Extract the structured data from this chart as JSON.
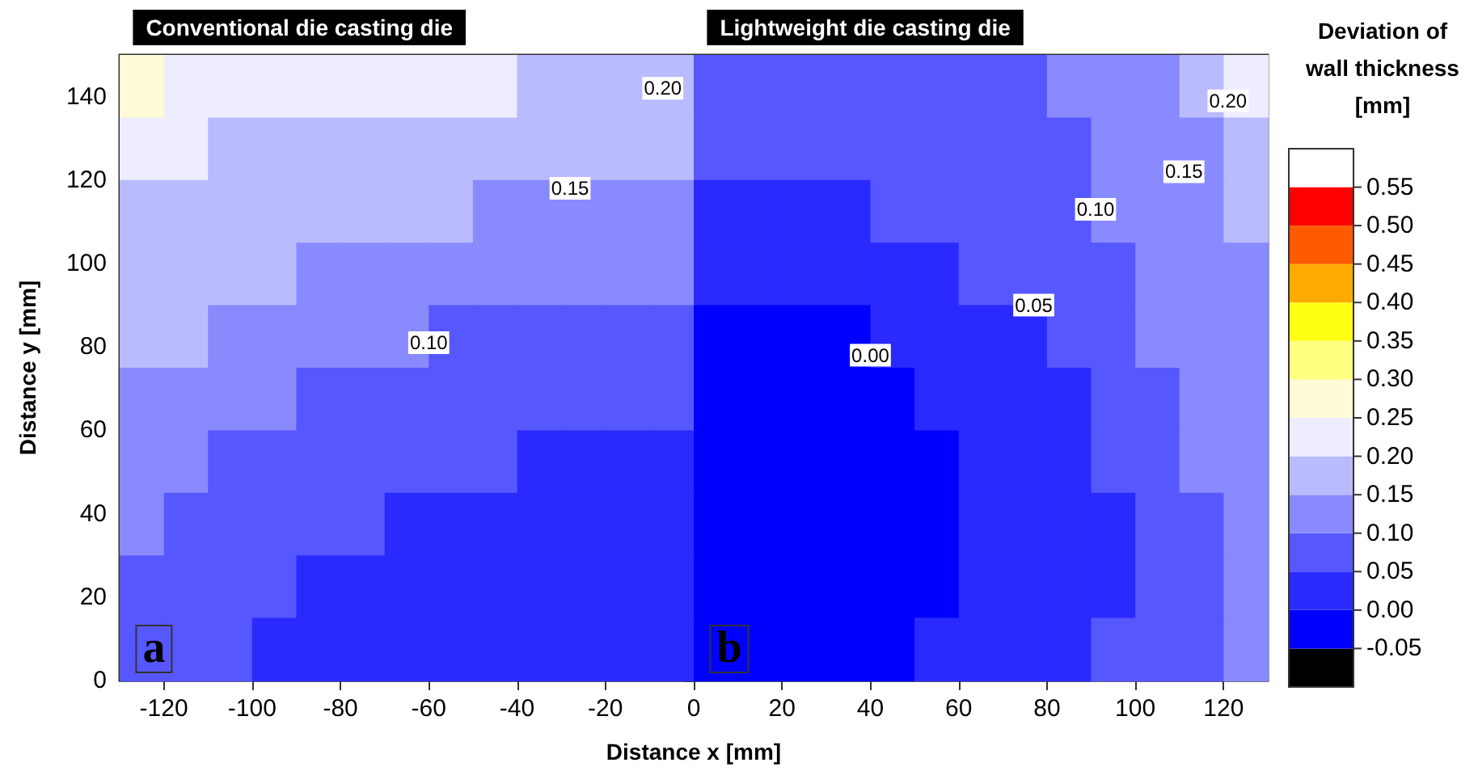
{
  "chart_data": {
    "type": "heatmap",
    "xlabel": "Distance x [mm]",
    "ylabel": "Distance y [mm]",
    "clabel": "Deviation of wall thickness [mm]",
    "x": [
      -125,
      -115,
      -105,
      -95,
      -85,
      -75,
      -65,
      -55,
      -45,
      -35,
      -25,
      -15,
      -5,
      5,
      15,
      25,
      35,
      45,
      55,
      65,
      75,
      85,
      95,
      105,
      115,
      125
    ],
    "y": [
      142.5,
      127.5,
      112.5,
      97.5,
      82.5,
      67.5,
      52.5,
      37.5,
      22.5,
      7.5
    ],
    "cells": [
      [
        0.275,
        0.225,
        0.225,
        0.225,
        0.225,
        0.225,
        0.225,
        0.225,
        0.225,
        0.175,
        0.175,
        0.175,
        0.175,
        0.075,
        0.075,
        0.075,
        0.075,
        0.075,
        0.075,
        0.075,
        0.075,
        0.125,
        0.125,
        0.125,
        0.175,
        0.225
      ],
      [
        0.225,
        0.225,
        0.175,
        0.175,
        0.175,
        0.175,
        0.175,
        0.175,
        0.175,
        0.175,
        0.175,
        0.175,
        0.175,
        0.075,
        0.075,
        0.075,
        0.075,
        0.075,
        0.075,
        0.075,
        0.075,
        0.075,
        0.125,
        0.125,
        0.125,
        0.175
      ],
      [
        0.175,
        0.175,
        0.175,
        0.175,
        0.175,
        0.175,
        0.175,
        0.175,
        0.125,
        0.125,
        0.125,
        0.125,
        0.125,
        0.025,
        0.025,
        0.025,
        0.025,
        0.075,
        0.075,
        0.075,
        0.075,
        0.075,
        0.125,
        0.125,
        0.125,
        0.175
      ],
      [
        0.175,
        0.175,
        0.175,
        0.175,
        0.125,
        0.125,
        0.125,
        0.125,
        0.125,
        0.125,
        0.125,
        0.125,
        0.125,
        0.025,
        0.025,
        0.025,
        0.025,
        0.025,
        0.025,
        0.075,
        0.075,
        0.075,
        0.075,
        0.125,
        0.125,
        0.125
      ],
      [
        0.175,
        0.175,
        0.125,
        0.125,
        0.125,
        0.125,
        0.125,
        0.075,
        0.075,
        0.075,
        0.075,
        0.075,
        0.075,
        -0.025,
        -0.025,
        -0.025,
        -0.025,
        0.025,
        0.025,
        0.025,
        0.025,
        0.075,
        0.075,
        0.125,
        0.125,
        0.125
      ],
      [
        0.125,
        0.125,
        0.125,
        0.125,
        0.075,
        0.075,
        0.075,
        0.075,
        0.075,
        0.075,
        0.075,
        0.075,
        0.075,
        -0.025,
        -0.025,
        -0.025,
        -0.025,
        -0.025,
        0.025,
        0.025,
        0.025,
        0.025,
        0.075,
        0.075,
        0.125,
        0.125
      ],
      [
        0.125,
        0.125,
        0.075,
        0.075,
        0.075,
        0.075,
        0.075,
        0.075,
        0.075,
        0.025,
        0.025,
        0.025,
        0.025,
        -0.025,
        -0.025,
        -0.025,
        -0.025,
        -0.025,
        -0.025,
        0.025,
        0.025,
        0.025,
        0.075,
        0.075,
        0.125,
        0.125
      ],
      [
        0.125,
        0.075,
        0.075,
        0.075,
        0.075,
        0.075,
        0.025,
        0.025,
        0.025,
        0.025,
        0.025,
        0.025,
        0.025,
        -0.025,
        -0.025,
        -0.025,
        -0.025,
        -0.025,
        -0.025,
        0.025,
        0.025,
        0.025,
        0.025,
        0.075,
        0.075,
        0.125
      ],
      [
        0.075,
        0.075,
        0.075,
        0.075,
        0.025,
        0.025,
        0.025,
        0.025,
        0.025,
        0.025,
        0.025,
        0.025,
        0.025,
        -0.025,
        -0.025,
        -0.025,
        -0.025,
        -0.025,
        -0.025,
        0.025,
        0.025,
        0.025,
        0.025,
        0.075,
        0.075,
        0.125
      ],
      [
        0.075,
        0.075,
        0.075,
        0.025,
        0.025,
        0.025,
        0.025,
        0.025,
        0.025,
        0.025,
        0.025,
        0.025,
        0.025,
        -0.025,
        -0.025,
        -0.025,
        -0.025,
        -0.025,
        0.025,
        0.025,
        0.025,
        0.025,
        0.075,
        0.075,
        0.075,
        0.125
      ]
    ],
    "xlim": [
      -130,
      130
    ],
    "xticks": [
      -120,
      -100,
      -80,
      -60,
      -40,
      -20,
      0,
      20,
      40,
      60,
      80,
      100,
      120
    ],
    "ylim": [
      0,
      150
    ],
    "yticks": [
      0,
      20,
      40,
      60,
      80,
      100,
      120,
      140
    ],
    "clim": [
      -0.1,
      0.6
    ],
    "cticks": [
      {
        "value": -0.05,
        "label": "-0.05"
      },
      {
        "value": 0,
        "label": "0.00"
      },
      {
        "value": 0.05,
        "label": "0.05"
      },
      {
        "value": 0.1,
        "label": "0.10"
      },
      {
        "value": 0.15,
        "label": "0.15"
      },
      {
        "value": 0.2,
        "label": "0.20"
      },
      {
        "value": 0.25,
        "label": "0.25"
      },
      {
        "value": 0.3,
        "label": "0.30"
      },
      {
        "value": 0.35,
        "label": "0.35"
      },
      {
        "value": 0.4,
        "label": "0.40"
      },
      {
        "value": 0.45,
        "label": "0.45"
      },
      {
        "value": 0.5,
        "label": "0.50"
      },
      {
        "value": 0.55,
        "label": "0.55"
      }
    ],
    "colors": [
      "#000000",
      "#0000ff",
      "#2a2aff",
      "#5757ff",
      "#8a8aff",
      "#babaff",
      "#ededff",
      "#fffbd6",
      "#ffff80",
      "#ffff14",
      "#ffaa00",
      "#ff5a00",
      "#ff0000",
      "#ffffff"
    ],
    "annotations": [
      "Conventional die casting die",
      "Lightweight die casting die",
      "0.20",
      "0.15",
      "0.10",
      "0.00",
      "0.05",
      "0.10",
      "0.15",
      "0.20",
      "a",
      "b"
    ]
  }
}
